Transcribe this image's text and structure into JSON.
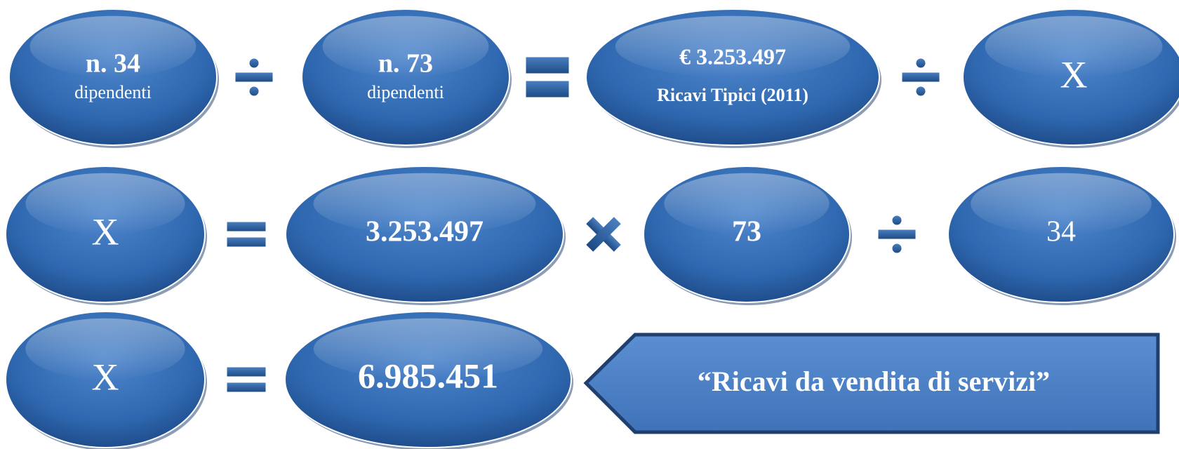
{
  "rows": [
    [
      {
        "lines": [
          "n. 34",
          "dipendenti"
        ]
      },
      {
        "lines": [
          "n. 73",
          "dipendenti"
        ]
      },
      {
        "lines": [
          "€ 3.253.497",
          "Ricavi Tipici (2011)"
        ]
      },
      {
        "lines": [
          "X"
        ]
      }
    ],
    [
      {
        "lines": [
          "X"
        ]
      },
      {
        "lines": [
          "3.253.497"
        ]
      },
      {
        "lines": [
          "73"
        ]
      },
      {
        "lines": [
          "34"
        ]
      }
    ],
    [
      {
        "lines": [
          "X"
        ]
      },
      {
        "lines": [
          "6.985.451"
        ]
      }
    ]
  ],
  "callout": {
    "text": "“Ricavi da vendita di servizi”"
  }
}
